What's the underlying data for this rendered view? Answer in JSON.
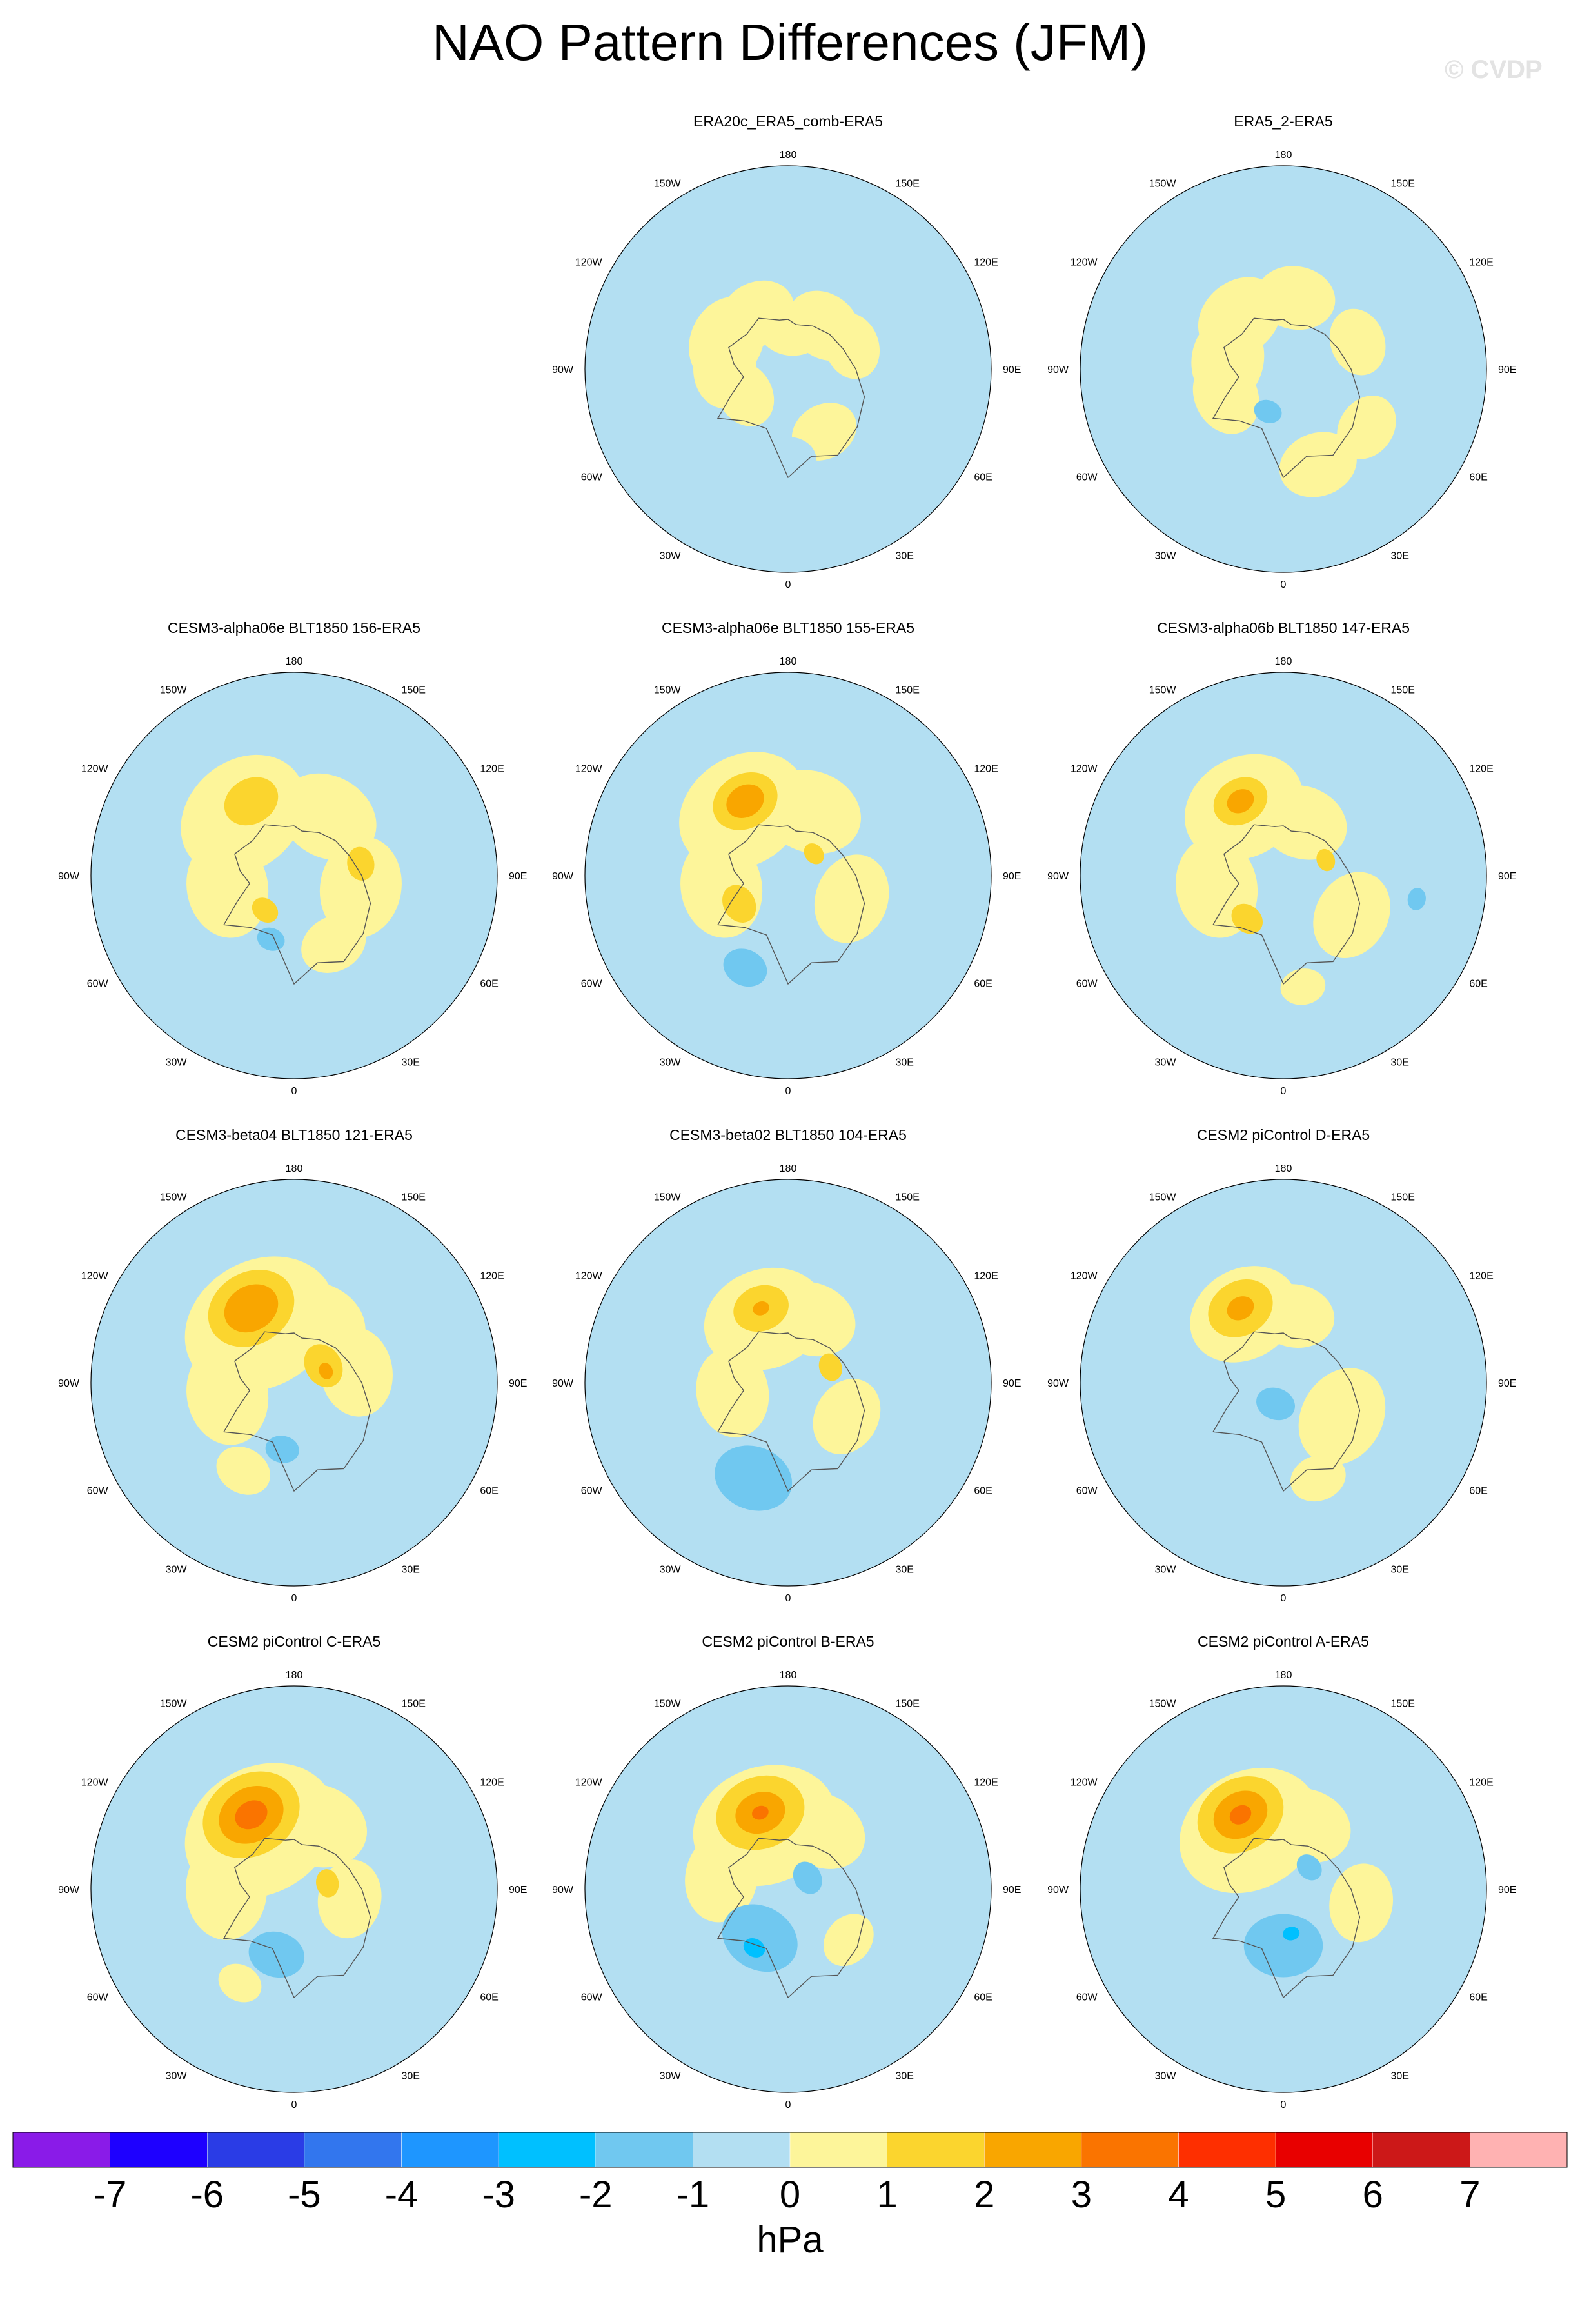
{
  "title": "NAO Pattern Differences (JFM)",
  "watermark": "© CVDP",
  "units": "hPa",
  "lon_labels": [
    "180",
    "150E",
    "120E",
    "90E",
    "60E",
    "30E",
    "0",
    "30W",
    "60W",
    "90W",
    "120W",
    "150W"
  ],
  "colors": {
    "ocean": "#b3dff2",
    "land_pos": "#fdf59a",
    "coast": "#555555",
    "border": "#000000"
  },
  "chart_data": {
    "type": "heatmap",
    "projection": "north polar stereographic",
    "variable": "NAO pattern difference (JFM)",
    "units": "hPa",
    "contour_levels": [
      -7,
      -6,
      -5,
      -4,
      -3,
      -2,
      -1,
      0,
      1,
      2,
      3,
      4,
      5,
      6,
      7
    ],
    "colorbar_colors": [
      "#8a1be8",
      "#1e00ff",
      "#2a3ce6",
      "#3276ee",
      "#1e96ff",
      "#00c0ff",
      "#70c8f0",
      "#b3dff2",
      "#fdf59a",
      "#fbd52e",
      "#f9a600",
      "#fa7400",
      "#fe2f00",
      "#e80000",
      "#cc1818",
      "#ffb2b2"
    ],
    "panels": [
      {
        "title": "ERA20c_ERA5_comb-ERA5",
        "row": 0,
        "col": 1,
        "features": [
          {
            "lon": 175,
            "colat": 18,
            "r": 12,
            "value": 0.5
          },
          {
            "lon": 140,
            "colat": 25,
            "r": 14,
            "value": 0.5
          },
          {
            "lon": -150,
            "colat": 28,
            "r": 14,
            "value": 0.5
          },
          {
            "lon": -115,
            "colat": 30,
            "r": 16,
            "value": 0.5
          },
          {
            "lon": -90,
            "colat": 28,
            "r": 14,
            "value": 0.5
          },
          {
            "lon": -60,
            "colat": 22,
            "r": 12,
            "value": 0.5
          },
          {
            "lon": 110,
            "colat": 30,
            "r": 12,
            "value": 0.5
          },
          {
            "lon": 30,
            "colat": 32,
            "r": 12,
            "value": 0.5
          },
          {
            "lon": 0,
            "colat": 40,
            "r": 10,
            "value": -0.5
          }
        ]
      },
      {
        "title": "ERA5_2-ERA5",
        "row": 0,
        "col": 2,
        "features": [
          {
            "lon": 170,
            "colat": 32,
            "r": 14,
            "value": 0.5
          },
          {
            "lon": -140,
            "colat": 30,
            "r": 16,
            "value": 0.5
          },
          {
            "lon": -100,
            "colat": 25,
            "r": 16,
            "value": 0.5
          },
          {
            "lon": -65,
            "colat": 28,
            "r": 14,
            "value": 0.5
          },
          {
            "lon": 20,
            "colat": 45,
            "r": 14,
            "value": 0.5
          },
          {
            "lon": 55,
            "colat": 45,
            "r": 12,
            "value": 0.5
          },
          {
            "lon": 110,
            "colat": 35,
            "r": 12,
            "value": 0.5
          },
          {
            "lon": -20,
            "colat": 20,
            "r": 5,
            "value": -1.5
          }
        ]
      },
      {
        "title": "CESM3-alpha06e BLT1850 156-ERA5",
        "row": 1,
        "col": 0,
        "features": [
          {
            "lon": -140,
            "colat": 35,
            "r": 24,
            "value": 0.5
          },
          {
            "lon": 150,
            "colat": 30,
            "r": 18,
            "value": 0.5
          },
          {
            "lon": -80,
            "colat": 30,
            "r": 18,
            "value": 0.5
          },
          {
            "lon": 80,
            "colat": 30,
            "r": 18,
            "value": 0.5
          },
          {
            "lon": 30,
            "colat": 35,
            "r": 12,
            "value": 0.5
          },
          {
            "lon": -150,
            "colat": 38,
            "r": 10,
            "value": 1.5
          },
          {
            "lon": -40,
            "colat": 20,
            "r": 5,
            "value": 1.5
          },
          {
            "lon": 100,
            "colat": 30,
            "r": 6,
            "value": 1.5
          },
          {
            "lon": -20,
            "colat": 30,
            "r": 5,
            "value": -1.5
          }
        ]
      },
      {
        "title": "CESM3-alpha06e BLT1850 155-ERA5",
        "row": 1,
        "col": 1,
        "features": [
          {
            "lon": -145,
            "colat": 35,
            "r": 24,
            "value": 0.5
          },
          {
            "lon": 160,
            "colat": 30,
            "r": 18,
            "value": 0.5
          },
          {
            "lon": -80,
            "colat": 30,
            "r": 18,
            "value": 0.5
          },
          {
            "lon": 70,
            "colat": 30,
            "r": 16,
            "value": 0.5
          },
          {
            "lon": -150,
            "colat": 38,
            "r": 12,
            "value": 1.5
          },
          {
            "lon": -150,
            "colat": 38,
            "r": 7,
            "value": 2.5
          },
          {
            "lon": -60,
            "colat": 25,
            "r": 7,
            "value": 1.5
          },
          {
            "lon": 130,
            "colat": 15,
            "r": 4,
            "value": 1.5
          },
          {
            "lon": -25,
            "colat": 45,
            "r": 8,
            "value": -1.5
          }
        ]
      },
      {
        "title": "CESM3-alpha06b BLT1850 147-ERA5",
        "row": 1,
        "col": 2,
        "features": [
          {
            "lon": -150,
            "colat": 35,
            "r": 22,
            "value": 0.5
          },
          {
            "lon": 160,
            "colat": 25,
            "r": 16,
            "value": 0.5
          },
          {
            "lon": -80,
            "colat": 30,
            "r": 18,
            "value": 0.5
          },
          {
            "lon": 60,
            "colat": 35,
            "r": 16,
            "value": 0.5
          },
          {
            "lon": 10,
            "colat": 50,
            "r": 8,
            "value": 0.5
          },
          {
            "lon": -150,
            "colat": 38,
            "r": 10,
            "value": 1.5
          },
          {
            "lon": -150,
            "colat": 38,
            "r": 5,
            "value": 2.5
          },
          {
            "lon": -40,
            "colat": 25,
            "r": 6,
            "value": 1.5
          },
          {
            "lon": 110,
            "colat": 20,
            "r": 4,
            "value": 1.5
          },
          {
            "lon": 80,
            "colat": 60,
            "r": 4,
            "value": -1.5
          }
        ]
      },
      {
        "title": "CESM3-beta04 BLT1850 121-ERA5",
        "row": 2,
        "col": 0,
        "features": [
          {
            "lon": -150,
            "colat": 30,
            "r": 28,
            "value": 0.5
          },
          {
            "lon": 160,
            "colat": 28,
            "r": 18,
            "value": 0.5
          },
          {
            "lon": -80,
            "colat": 30,
            "r": 18,
            "value": 0.5
          },
          {
            "lon": 100,
            "colat": 28,
            "r": 16,
            "value": 0.5
          },
          {
            "lon": -30,
            "colat": 45,
            "r": 10,
            "value": 0.5
          },
          {
            "lon": -150,
            "colat": 38,
            "r": 16,
            "value": 1.5
          },
          {
            "lon": -150,
            "colat": 38,
            "r": 10,
            "value": 2.5
          },
          {
            "lon": 120,
            "colat": 15,
            "r": 8,
            "value": 1.5
          },
          {
            "lon": 110,
            "colat": 15,
            "r": 3,
            "value": 2.5
          },
          {
            "lon": -10,
            "colat": 30,
            "r": 6,
            "value": -1.5
          }
        ]
      },
      {
        "title": "CESM3-beta02 BLT1850 104-ERA5",
        "row": 2,
        "col": 1,
        "features": [
          {
            "lon": -160,
            "colat": 30,
            "r": 22,
            "value": 0.5
          },
          {
            "lon": 160,
            "colat": 30,
            "r": 16,
            "value": 0.5
          },
          {
            "lon": -80,
            "colat": 25,
            "r": 16,
            "value": 0.5
          },
          {
            "lon": 60,
            "colat": 30,
            "r": 14,
            "value": 0.5
          },
          {
            "lon": -160,
            "colat": 35,
            "r": 10,
            "value": 1.5
          },
          {
            "lon": -160,
            "colat": 35,
            "r": 3,
            "value": 2.5
          },
          {
            "lon": 110,
            "colat": 20,
            "r": 5,
            "value": 1.5
          },
          {
            "lon": -20,
            "colat": 45,
            "r": 14,
            "value": -1.5
          }
        ]
      },
      {
        "title": "CESM2 piControl D-ERA5",
        "row": 2,
        "col": 2,
        "features": [
          {
            "lon": -150,
            "colat": 35,
            "r": 20,
            "value": 0.5
          },
          {
            "lon": 170,
            "colat": 30,
            "r": 14,
            "value": 0.5
          },
          {
            "lon": 60,
            "colat": 30,
            "r": 18,
            "value": 0.5
          },
          {
            "lon": 20,
            "colat": 45,
            "r": 10,
            "value": 0.5
          },
          {
            "lon": -150,
            "colat": 38,
            "r": 12,
            "value": 1.5
          },
          {
            "lon": -150,
            "colat": 38,
            "r": 5,
            "value": 2.5
          },
          {
            "lon": -20,
            "colat": 10,
            "r": 7,
            "value": -1.5
          }
        ]
      },
      {
        "title": "CESM2 piControl C-ERA5",
        "row": 3,
        "col": 0,
        "features": [
          {
            "lon": -150,
            "colat": 30,
            "r": 28,
            "value": 0.5
          },
          {
            "lon": 160,
            "colat": 30,
            "r": 18,
            "value": 0.5
          },
          {
            "lon": -90,
            "colat": 30,
            "r": 18,
            "value": 0.5
          },
          {
            "lon": 80,
            "colat": 25,
            "r": 14,
            "value": 0.5
          },
          {
            "lon": -30,
            "colat": 48,
            "r": 8,
            "value": 0.5
          },
          {
            "lon": -150,
            "colat": 38,
            "r": 18,
            "value": 1.5
          },
          {
            "lon": -150,
            "colat": 38,
            "r": 12,
            "value": 2.5
          },
          {
            "lon": -150,
            "colat": 38,
            "r": 6,
            "value": 3.5
          },
          {
            "lon": 100,
            "colat": 15,
            "r": 5,
            "value": 1.5
          },
          {
            "lon": -15,
            "colat": 30,
            "r": 10,
            "value": -1.5
          }
        ]
      },
      {
        "title": "CESM2 piControl B-ERA5",
        "row": 3,
        "col": 1,
        "features": [
          {
            "lon": -160,
            "colat": 30,
            "r": 26,
            "value": 0.5
          },
          {
            "lon": 150,
            "colat": 30,
            "r": 16,
            "value": 0.5
          },
          {
            "lon": -100,
            "colat": 30,
            "r": 16,
            "value": 0.5
          },
          {
            "lon": 50,
            "colat": 35,
            "r": 10,
            "value": 0.5
          },
          {
            "lon": -160,
            "colat": 36,
            "r": 16,
            "value": 1.5
          },
          {
            "lon": -160,
            "colat": 36,
            "r": 9,
            "value": 2.5
          },
          {
            "lon": -160,
            "colat": 36,
            "r": 3,
            "value": 3.5
          },
          {
            "lon": -30,
            "colat": 25,
            "r": 14,
            "value": -1.5
          },
          {
            "lon": -30,
            "colat": 30,
            "r": 4,
            "value": -2.5
          },
          {
            "lon": 120,
            "colat": 10,
            "r": 6,
            "value": -1.5
          }
        ]
      },
      {
        "title": "CESM2 piControl A-ERA5",
        "row": 3,
        "col": 2,
        "features": [
          {
            "lon": -150,
            "colat": 30,
            "r": 26,
            "value": 0.5
          },
          {
            "lon": 160,
            "colat": 30,
            "r": 16,
            "value": 0.5
          },
          {
            "lon": 80,
            "colat": 35,
            "r": 14,
            "value": 0.5
          },
          {
            "lon": -150,
            "colat": 38,
            "r": 16,
            "value": 1.5
          },
          {
            "lon": -150,
            "colat": 38,
            "r": 10,
            "value": 2.5
          },
          {
            "lon": -150,
            "colat": 38,
            "r": 4,
            "value": 3.5
          },
          {
            "lon": 0,
            "colat": 25,
            "r": 14,
            "value": -1.5
          },
          {
            "lon": 10,
            "colat": 20,
            "r": 3,
            "value": -2.5
          },
          {
            "lon": 130,
            "colat": 15,
            "r": 5,
            "value": -1.5
          }
        ]
      }
    ]
  },
  "colorbar_labels": [
    "-7",
    "-6",
    "-5",
    "-4",
    "-3",
    "-2",
    "-1",
    "0",
    "1",
    "2",
    "3",
    "4",
    "5",
    "6",
    "7"
  ]
}
